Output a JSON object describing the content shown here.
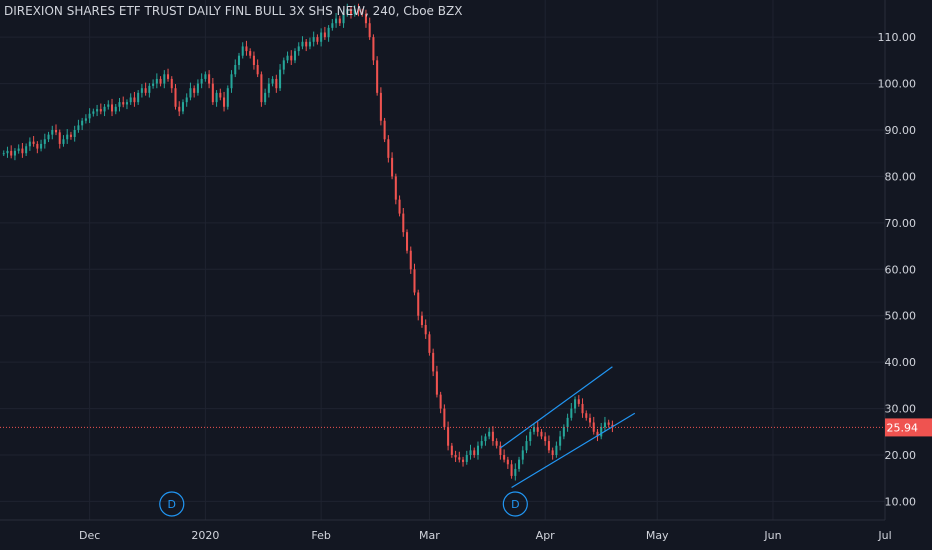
{
  "colors": {
    "background": "#131722",
    "grid": "#1f2330",
    "axis_text": "#d1d4dc",
    "up": "#26a69a",
    "down": "#ef5350",
    "trendline": "#2196f3",
    "price_label_bg": "#ef5350",
    "price_line": "#ef5350",
    "dividend_marker": "#2196f3"
  },
  "chart_data": {
    "type": "candlestick",
    "title": "DIREXION SHARES ETF TRUST DAILY FINL BULL 3X SHS NEW, 240, Cboe BZX",
    "y_axis": {
      "ticks": [
        "110.00",
        "100.00",
        "90.00",
        "80.00",
        "70.00",
        "60.00",
        "50.00",
        "40.00",
        "30.00",
        "20.00",
        "10.00"
      ],
      "tick_values": [
        110,
        100,
        90,
        80,
        70,
        60,
        50,
        40,
        30,
        20,
        10
      ],
      "range": [
        6,
        118
      ]
    },
    "x_axis": {
      "labels": [
        "Dec",
        "2020",
        "Feb",
        "Mar",
        "Apr",
        "May",
        "Jun",
        "Jul"
      ],
      "label_days": [
        30,
        61,
        92,
        121,
        152,
        182,
        213,
        243
      ],
      "range_days": [
        6,
        243
      ]
    },
    "last_price": {
      "value": 25.94,
      "label": "25.94"
    },
    "dividend_markers": [
      {
        "label": "D",
        "day": 52
      },
      {
        "label": "D",
        "day": 144
      }
    ],
    "trend_channel": {
      "upper": {
        "start": [
          140,
          21.5
        ],
        "end": [
          170,
          39
        ]
      },
      "lower": {
        "start": [
          143,
          13
        ],
        "end": [
          176,
          29
        ]
      }
    },
    "candles_close_series": [
      [
        7,
        85
      ],
      [
        8,
        85.5
      ],
      [
        9,
        84.5
      ],
      [
        10,
        85.5
      ],
      [
        11,
        86
      ],
      [
        12,
        85
      ],
      [
        13,
        86.5
      ],
      [
        14,
        87.5
      ],
      [
        15,
        87
      ],
      [
        16,
        86
      ],
      [
        17,
        87
      ],
      [
        18,
        88
      ],
      [
        19,
        89
      ],
      [
        20,
        90
      ],
      [
        21,
        89.5
      ],
      [
        22,
        87
      ],
      [
        23,
        88
      ],
      [
        24,
        89
      ],
      [
        25,
        88.5
      ],
      [
        26,
        90
      ],
      [
        27,
        91
      ],
      [
        28,
        92
      ],
      [
        29,
        92.5
      ],
      [
        30,
        93.5
      ],
      [
        31,
        94
      ],
      [
        32,
        94.5
      ],
      [
        33,
        94
      ],
      [
        34,
        95
      ],
      [
        35,
        95.5
      ],
      [
        36,
        94
      ],
      [
        37,
        95
      ],
      [
        38,
        96
      ],
      [
        39,
        95.5
      ],
      [
        40,
        96
      ],
      [
        41,
        97
      ],
      [
        42,
        96
      ],
      [
        43,
        98
      ],
      [
        44,
        99
      ],
      [
        45,
        98
      ],
      [
        46,
        99.5
      ],
      [
        47,
        100
      ],
      [
        48,
        101
      ],
      [
        49,
        100
      ],
      [
        50,
        102
      ],
      [
        51,
        101
      ],
      [
        52,
        99
      ],
      [
        53,
        95
      ],
      [
        54,
        94
      ],
      [
        55,
        96
      ],
      [
        56,
        97
      ],
      [
        57,
        99
      ],
      [
        58,
        98
      ],
      [
        59,
        100
      ],
      [
        60,
        101
      ],
      [
        61,
        102
      ],
      [
        62,
        100
      ],
      [
        63,
        96
      ],
      [
        64,
        98
      ],
      [
        65,
        97
      ],
      [
        66,
        95
      ],
      [
        67,
        99
      ],
      [
        68,
        102
      ],
      [
        69,
        104
      ],
      [
        70,
        106
      ],
      [
        71,
        108
      ],
      [
        72,
        107
      ],
      [
        73,
        106
      ],
      [
        74,
        104
      ],
      [
        75,
        102
      ],
      [
        76,
        96
      ],
      [
        77,
        98
      ],
      [
        78,
        100
      ],
      [
        79,
        101
      ],
      [
        80,
        99
      ],
      [
        81,
        103
      ],
      [
        82,
        105
      ],
      [
        83,
        106
      ],
      [
        84,
        105
      ],
      [
        85,
        107
      ],
      [
        86,
        108
      ],
      [
        87,
        109
      ],
      [
        88,
        108
      ],
      [
        89,
        109
      ],
      [
        90,
        110
      ],
      [
        91,
        109
      ],
      [
        92,
        111
      ],
      [
        93,
        110
      ],
      [
        94,
        112
      ],
      [
        95,
        113
      ],
      [
        96,
        114
      ],
      [
        97,
        113
      ],
      [
        98,
        115
      ],
      [
        99,
        116
      ],
      [
        100,
        115
      ],
      [
        101,
        116
      ],
      [
        102,
        115.5
      ],
      [
        103,
        115
      ],
      [
        104,
        113
      ],
      [
        105,
        110
      ],
      [
        106,
        105
      ],
      [
        107,
        98
      ],
      [
        108,
        92
      ],
      [
        109,
        88
      ],
      [
        110,
        84
      ],
      [
        111,
        80
      ],
      [
        112,
        75
      ],
      [
        113,
        72
      ],
      [
        114,
        68
      ],
      [
        115,
        64
      ],
      [
        116,
        60
      ],
      [
        117,
        55
      ],
      [
        118,
        50
      ],
      [
        119,
        48
      ],
      [
        120,
        46
      ],
      [
        121,
        42
      ],
      [
        122,
        38
      ],
      [
        123,
        33
      ],
      [
        124,
        30
      ],
      [
        125,
        26
      ],
      [
        126,
        22
      ],
      [
        127,
        20
      ],
      [
        128,
        19.5
      ],
      [
        129,
        19
      ],
      [
        130,
        18.5
      ],
      [
        131,
        20
      ],
      [
        132,
        21
      ],
      [
        133,
        20
      ],
      [
        134,
        22
      ],
      [
        135,
        23
      ],
      [
        136,
        24
      ],
      [
        137,
        25
      ],
      [
        138,
        23
      ],
      [
        139,
        22
      ],
      [
        140,
        20
      ],
      [
        141,
        19
      ],
      [
        142,
        18
      ],
      [
        143,
        15.5
      ],
      [
        144,
        17
      ],
      [
        145,
        19
      ],
      [
        146,
        21
      ],
      [
        147,
        23
      ],
      [
        148,
        25
      ],
      [
        149,
        26
      ],
      [
        150,
        25
      ],
      [
        151,
        24
      ],
      [
        152,
        23
      ],
      [
        153,
        21
      ],
      [
        154,
        20
      ],
      [
        155,
        22
      ],
      [
        156,
        24
      ],
      [
        157,
        26
      ],
      [
        158,
        28
      ],
      [
        159,
        30
      ],
      [
        160,
        32
      ],
      [
        161,
        31
      ],
      [
        162,
        29
      ],
      [
        163,
        28
      ],
      [
        164,
        27
      ],
      [
        165,
        25
      ],
      [
        166,
        24
      ],
      [
        167,
        26
      ],
      [
        168,
        27
      ],
      [
        169,
        26.5
      ],
      [
        170,
        25.94
      ]
    ]
  }
}
